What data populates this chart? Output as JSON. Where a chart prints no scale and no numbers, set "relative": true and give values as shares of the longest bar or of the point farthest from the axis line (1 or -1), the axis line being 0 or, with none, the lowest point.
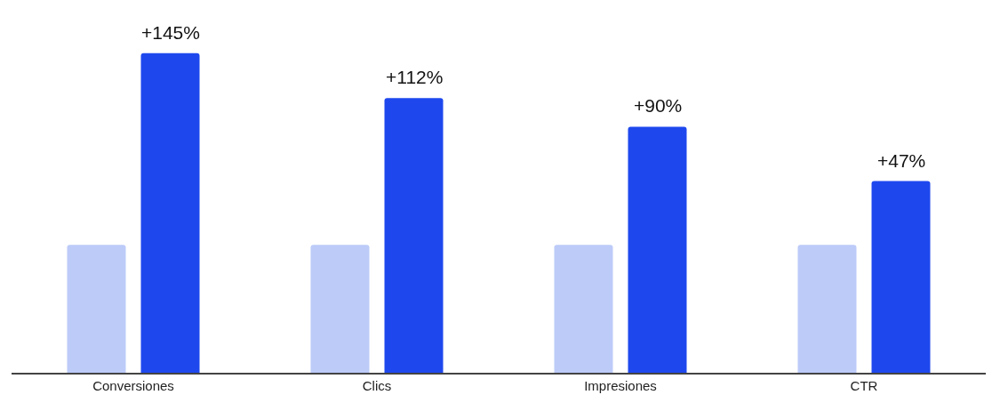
{
  "chart_data": {
    "type": "bar",
    "relative": true,
    "categories": [
      "Conversiones",
      "Clics",
      "Impresiones",
      "CTR"
    ],
    "series": [
      {
        "color": "#bccbf8",
        "values": [
          0.4,
          0.4,
          0.4,
          0.4
        ]
      },
      {
        "color": "#1e48ee",
        "values": [
          1,
          0.86,
          0.77,
          0.6
        ]
      }
    ],
    "annotations": [
      "+145%",
      "+112%",
      "+90%",
      "+47%"
    ]
  }
}
